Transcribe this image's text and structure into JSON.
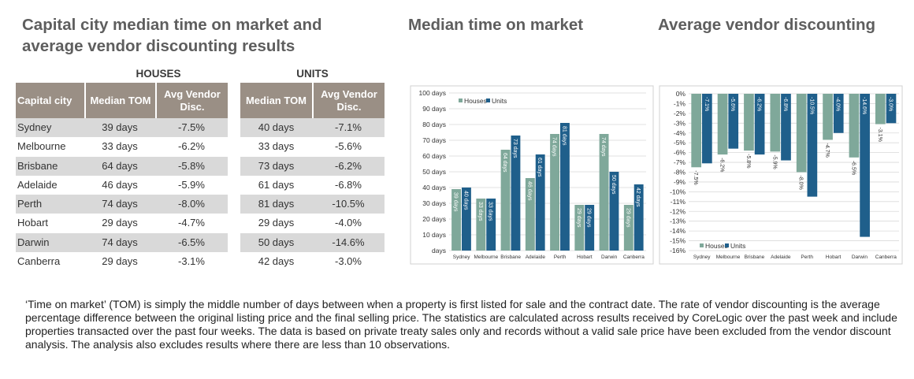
{
  "titles": {
    "main": "Capital city median time on market and average vendor discounting results",
    "tom": "Median time on market",
    "discount": "Average vendor discounting"
  },
  "table": {
    "group_houses": "HOUSES",
    "group_units": "UNITS",
    "headers": {
      "city": "Capital city",
      "median_tom": "Median TOM",
      "avg_disc": "Avg Vendor Disc."
    },
    "rows": [
      {
        "city": "Sydney",
        "h_tom": "39 days",
        "h_disc": "-7.5%",
        "u_tom": "40 days",
        "u_disc": "-7.1%"
      },
      {
        "city": "Melbourne",
        "h_tom": "33 days",
        "h_disc": "-6.2%",
        "u_tom": "33 days",
        "u_disc": "-5.6%"
      },
      {
        "city": "Brisbane",
        "h_tom": "64 days",
        "h_disc": "-5.8%",
        "u_tom": "73 days",
        "u_disc": "-6.2%"
      },
      {
        "city": "Adelaide",
        "h_tom": "46 days",
        "h_disc": "-5.9%",
        "u_tom": "61 days",
        "u_disc": "-6.8%"
      },
      {
        "city": "Perth",
        "h_tom": "74 days",
        "h_disc": "-8.0%",
        "u_tom": "81 days",
        "u_disc": "-10.5%"
      },
      {
        "city": "Hobart",
        "h_tom": "29 days",
        "h_disc": "-4.7%",
        "u_tom": "29 days",
        "u_disc": "-4.0%"
      },
      {
        "city": "Darwin",
        "h_tom": "74 days",
        "h_disc": "-6.5%",
        "u_tom": "50 days",
        "u_disc": "-14.6%"
      },
      {
        "city": "Canberra",
        "h_tom": "29 days",
        "h_disc": "-3.1%",
        "u_tom": "42 days",
        "u_disc": "-3.0%"
      }
    ]
  },
  "colors": {
    "houses": "#7fa89a",
    "units": "#1f5f8b",
    "header_bg": "#9a8f85"
  },
  "chart_data": [
    {
      "type": "bar",
      "title": "Median time on market",
      "categories": [
        "Sydney",
        "Melbourne",
        "Brisbane",
        "Adelaide",
        "Perth",
        "Hobart",
        "Darwin",
        "Canberra"
      ],
      "series": [
        {
          "name": "Houses",
          "values": [
            39,
            33,
            64,
            46,
            74,
            29,
            74,
            29
          ],
          "labels": [
            "39 days",
            "33 days",
            "64 days",
            "46 days",
            "74 days",
            "29 days",
            "74 days",
            "29 days"
          ]
        },
        {
          "name": "Units",
          "values": [
            40,
            33,
            73,
            61,
            81,
            29,
            50,
            42
          ],
          "labels": [
            "40 days",
            "33 days",
            "73 days",
            "61 days",
            "81 days",
            "29 days",
            "50 days",
            "42 days"
          ]
        }
      ],
      "ylim": [
        0,
        100
      ],
      "yticks": [
        "days",
        "10 days",
        "20 days",
        "30 days",
        "40 days",
        "50 days",
        "60 days",
        "70 days",
        "80 days",
        "90 days",
        "100 days"
      ],
      "legend": "top-left",
      "grid": true
    },
    {
      "type": "bar",
      "title": "Average vendor discounting",
      "categories": [
        "Sydney",
        "Melbourne",
        "Brisbane",
        "Adelaide",
        "Perth",
        "Hobart",
        "Darwin",
        "Canberra"
      ],
      "series": [
        {
          "name": "Houses",
          "values": [
            -7.5,
            -6.2,
            -5.8,
            -5.9,
            -8.0,
            -4.7,
            -6.5,
            -3.1
          ],
          "labels": [
            "-7.5%",
            "-6.2%",
            "-5.8%",
            "-5.9%",
            "-8.0%",
            "-4.7%",
            "-6.5%",
            "-3.1%"
          ]
        },
        {
          "name": "Units",
          "values": [
            -7.1,
            -5.6,
            -6.2,
            -6.8,
            -10.5,
            -4.0,
            -14.6,
            -3.0
          ],
          "labels": [
            "-7.1%",
            "-5.6%",
            "-6.2%",
            "-6.8%",
            "-10.5%",
            "-4.0%",
            "-14.6%",
            "-3.0%"
          ]
        }
      ],
      "ylim": [
        -16,
        0
      ],
      "yticks": [
        "0%",
        "-1%",
        "-2%",
        "-3%",
        "-4%",
        "-5%",
        "-6%",
        "-7%",
        "-8%",
        "-9%",
        "-10%",
        "-11%",
        "-12%",
        "-13%",
        "-14%",
        "-15%",
        "-16%"
      ],
      "legend": "bottom-left",
      "grid": true
    }
  ],
  "footnote": "‘Time on market’ (TOM) is simply the middle number of days between when a property is first listed for sale and the contract date.  The rate of vendor discounting is the average percentage difference between the original listing price and the final selling price.  The statistics are calculated across results received by CoreLogic over the past week and include properties transacted over the past four weeks. The data is based on private treaty sales only and records without a valid sale price have been excluded from the vendor discount analysis. The analysis also excludes results where there are less than 10 observations."
}
